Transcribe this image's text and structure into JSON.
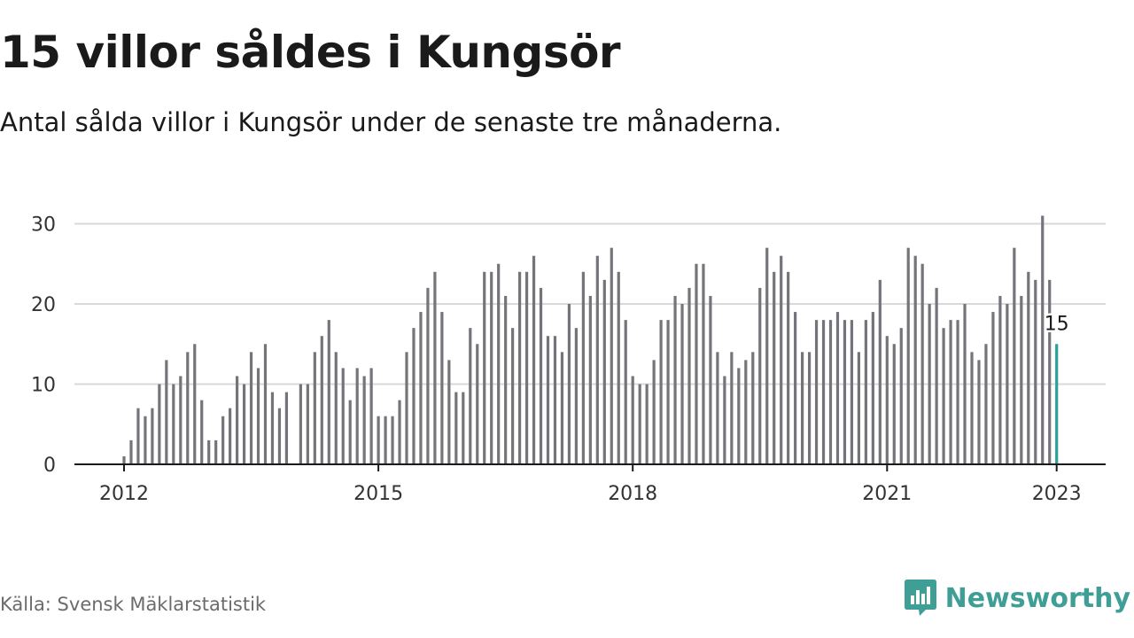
{
  "header": {
    "title": "15 villor såldes i Kungsör",
    "subtitle": "Antal sålda villor i Kungsör under de senaste tre månaderna."
  },
  "chart_data": {
    "type": "bar",
    "title": "15 villor såldes i Kungsör",
    "subtitle": "Antal sålda villor i Kungsör under de senaste tre månaderna.",
    "xlabel": "",
    "ylabel": "",
    "ylim": [
      0,
      30
    ],
    "y_ticks": [
      0,
      10,
      20,
      30
    ],
    "x_tick_labels": [
      "2012",
      "2015",
      "2018",
      "2021",
      "2023"
    ],
    "grid": true,
    "legend": "none",
    "period": "monthly, 2012-01 to 2023-01",
    "first_month": "2012-01",
    "values": [
      1,
      3,
      7,
      6,
      7,
      10,
      13,
      10,
      11,
      14,
      15,
      8,
      3,
      3,
      6,
      7,
      11,
      10,
      14,
      12,
      15,
      9,
      7,
      9,
      null,
      10,
      10,
      14,
      16,
      18,
      14,
      12,
      8,
      12,
      11,
      12,
      6,
      6,
      6,
      8,
      14,
      17,
      19,
      22,
      24,
      19,
      13,
      9,
      9,
      17,
      15,
      24,
      24,
      25,
      21,
      17,
      24,
      24,
      26,
      22,
      16,
      16,
      14,
      20,
      17,
      24,
      21,
      26,
      23,
      27,
      24,
      18,
      11,
      10,
      10,
      13,
      18,
      18,
      21,
      20,
      22,
      25,
      25,
      21,
      14,
      11,
      14,
      12,
      13,
      14,
      22,
      27,
      24,
      26,
      24,
      19,
      14,
      14,
      18,
      18,
      18,
      19,
      18,
      18,
      14,
      18,
      19,
      23,
      16,
      15,
      17,
      27,
      26,
      25,
      20,
      22,
      17,
      18,
      18,
      20,
      14,
      13,
      15,
      19,
      21,
      20,
      27,
      21,
      24,
      23,
      31,
      23,
      15
    ],
    "highlight": {
      "label": "15",
      "value": 15,
      "month": "2023-01"
    },
    "colors": {
      "bar": "#74747a",
      "highlight": "#2aa198",
      "grid": "#d9d9d9",
      "axis": "#1a1a1a"
    }
  },
  "footer": {
    "source": "Källa: Svensk Mäklarstatistik",
    "brand": "Newsworthy",
    "brand_icon": "newsworthy-chart-bubble-icon",
    "brand_color": "#3f9e96"
  }
}
